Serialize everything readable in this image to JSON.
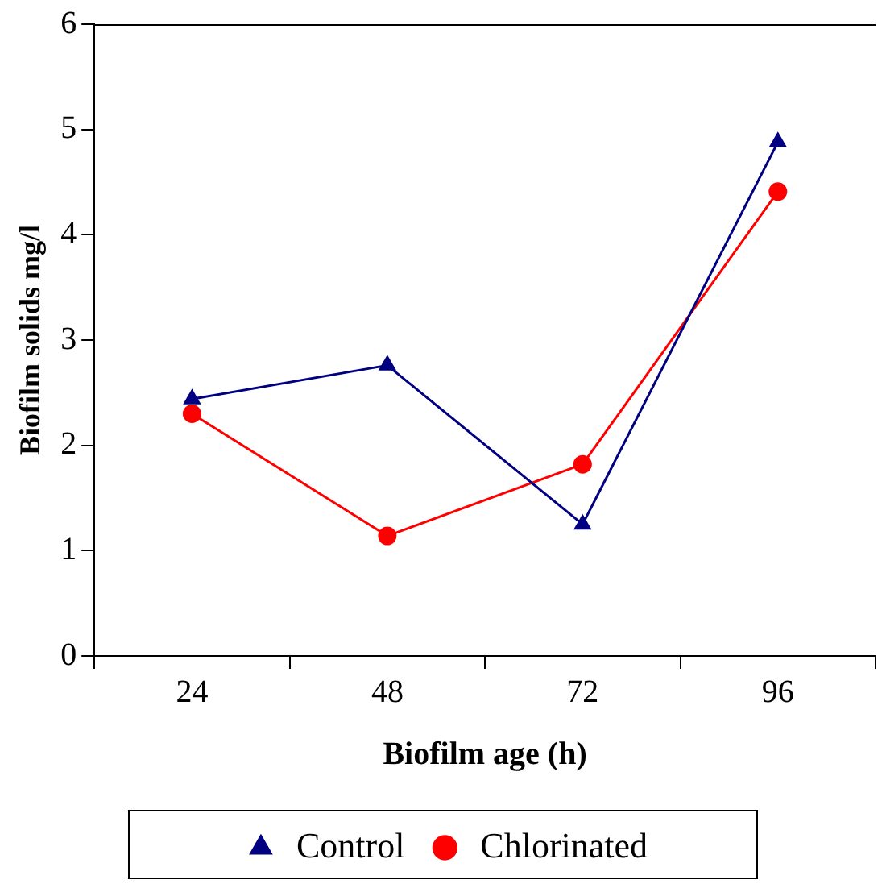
{
  "chart_data": {
    "type": "line",
    "xlabel": "Biofilm age (h)",
    "ylabel": "Biofilm solids mg/l",
    "categories": [
      "24",
      "48",
      "72",
      "96"
    ],
    "series": [
      {
        "name": "Control",
        "color": "#000080",
        "values": [
          2.44,
          2.76,
          1.25,
          4.88
        ],
        "marker": "triangle"
      },
      {
        "name": "Chlorinated",
        "color": "#ff0000",
        "values": [
          2.3,
          1.14,
          1.82,
          4.41
        ],
        "marker": "circle"
      }
    ],
    "ylim": [
      0,
      6
    ],
    "yticks": [
      0,
      1,
      2,
      3,
      4,
      5,
      6
    ],
    "grid": false,
    "legend": "bottom",
    "line_style": "solid"
  }
}
